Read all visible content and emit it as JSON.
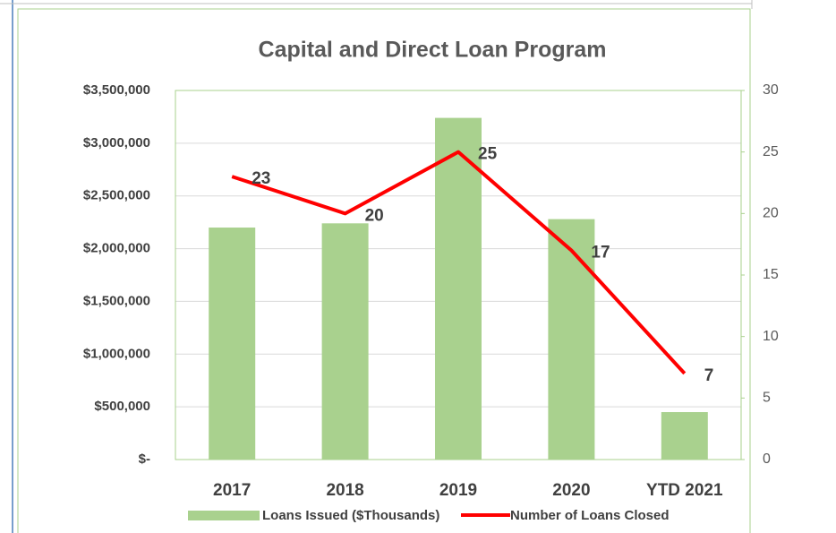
{
  "chart_data": {
    "type": "bar",
    "title": "Capital and Direct Loan Program",
    "categories": [
      "2017",
      "2018",
      "2019",
      "2020",
      "YTD 2021"
    ],
    "series": [
      {
        "name": "Loans Issued ($Thousands)",
        "color": "#a9d18e",
        "type": "bar",
        "values": [
          2200000,
          2240000,
          3240000,
          2280000,
          450000
        ]
      },
      {
        "name": "Number of Loans Closed",
        "color": "#ff0000",
        "type": "line",
        "axis": "y2",
        "values": [
          23,
          20,
          25,
          17,
          7
        ]
      }
    ],
    "ylim": [
      0,
      3500000
    ],
    "yticks": [
      {
        "value": 0,
        "label": "$-"
      },
      {
        "value": 500000,
        "label": "$500,000"
      },
      {
        "value": 1000000,
        "label": "$1,000,000"
      },
      {
        "value": 1500000,
        "label": "$1,500,000"
      },
      {
        "value": 2000000,
        "label": "$2,000,000"
      },
      {
        "value": 2500000,
        "label": "$2,500,000"
      },
      {
        "value": 3000000,
        "label": "$3,000,000"
      },
      {
        "value": 3500000,
        "label": "$3,500,000"
      }
    ],
    "y2lim": [
      0,
      30
    ],
    "y2ticks": [
      0,
      5,
      10,
      15,
      20,
      25,
      30
    ],
    "grid": true,
    "legend": "bottom"
  }
}
